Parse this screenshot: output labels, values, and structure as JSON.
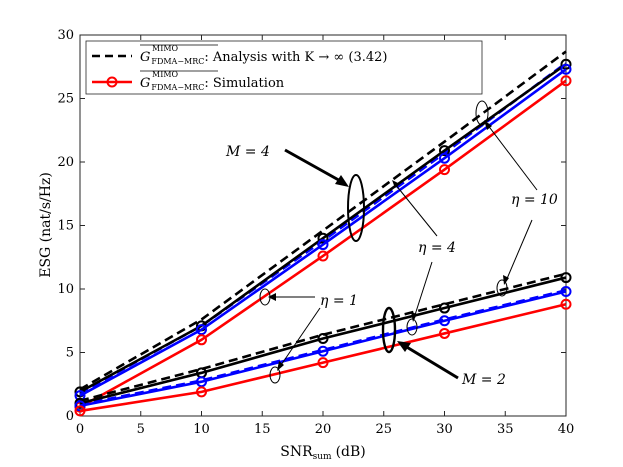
{
  "chart_data": {
    "type": "line",
    "xlabel": "SNR",
    "xlabel_sub": "sum",
    "xlabel_unit": "(dB)",
    "ylabel": "ESG (nat/s/Hz)",
    "xlim": [
      0,
      40
    ],
    "ylim": [
      0,
      30
    ],
    "xticks": [
      0,
      5,
      10,
      15,
      20,
      25,
      30,
      35,
      40
    ],
    "yticks": [
      0,
      5,
      10,
      15,
      20,
      25,
      30
    ],
    "x": [
      0,
      10,
      20,
      30,
      40
    ],
    "series": [
      {
        "name": "Analysis M=4 eta=10",
        "style": "dashed",
        "color": "#000000",
        "values": [
          2.1,
          7.6,
          14.6,
          21.6,
          28.7
        ],
        "markers": false
      },
      {
        "name": "Analysis M=4 eta=4",
        "style": "dashed",
        "color": "#0000ff",
        "values": [
          1.8,
          7.1,
          13.8,
          20.7,
          27.8
        ],
        "markers": false
      },
      {
        "name": "Simulation M=4 eta=10",
        "style": "solid",
        "color": "#000000",
        "values": [
          1.9,
          7.1,
          14.0,
          20.9,
          27.7
        ],
        "markers": true
      },
      {
        "name": "Simulation M=4 eta=4",
        "style": "solid",
        "color": "#0000ff",
        "values": [
          1.6,
          6.8,
          13.5,
          20.3,
          27.3
        ],
        "markers": true
      },
      {
        "name": "Simulation M=4 eta=1",
        "style": "solid",
        "color": "#ff0000",
        "values": [
          0.7,
          6.0,
          12.6,
          19.4,
          26.4
        ],
        "markers": true
      },
      {
        "name": "Analysis M=2 eta=10",
        "style": "dashed",
        "color": "#000000",
        "values": [
          1.2,
          3.7,
          6.4,
          8.8,
          11.2
        ],
        "markers": false
      },
      {
        "name": "Analysis M=2 eta=4",
        "style": "dashed",
        "color": "#0000ff",
        "values": [
          0.9,
          2.8,
          5.2,
          7.6,
          9.9
        ],
        "markers": false
      },
      {
        "name": "Simulation M=2 eta=10",
        "style": "solid",
        "color": "#000000",
        "values": [
          1.0,
          3.4,
          6.1,
          8.5,
          10.9
        ],
        "markers": true
      },
      {
        "name": "Simulation M=2 eta=4",
        "style": "solid",
        "color": "#0000ff",
        "values": [
          0.8,
          2.7,
          5.1,
          7.5,
          9.8
        ],
        "markers": true
      },
      {
        "name": "Simulation M=2 eta=1",
        "style": "solid",
        "color": "#ff0000",
        "values": [
          0.4,
          1.9,
          4.2,
          6.5,
          8.8
        ],
        "markers": true
      }
    ],
    "legend": [
      {
        "style": "dashed",
        "color": "#000000",
        "symbol": "G",
        "sup": "MIMO",
        "sub": "FDMA−MRC",
        "text": ": Analysis with K → ∞ (3.42)"
      },
      {
        "style": "solid-marker",
        "color": "#ff0000",
        "symbol": "G",
        "sup": "MIMO",
        "sub": "FDMA−MRC",
        "text": ": Simulation"
      }
    ],
    "annotations": {
      "m4": "M = 4",
      "m2": "M = 2",
      "eta10": "η = 10",
      "eta4": "η = 4",
      "eta1": "η = 1"
    }
  }
}
